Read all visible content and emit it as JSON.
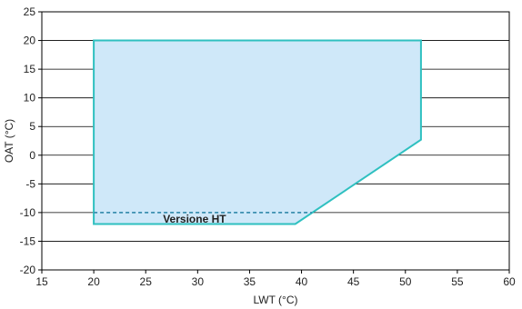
{
  "chart_data": {
    "type": "area",
    "title": "",
    "xlabel": "LWT (°C)",
    "ylabel": "OAT (°C)",
    "xlim": [
      15,
      60
    ],
    "ylim": [
      -20,
      25
    ],
    "xticks": [
      15,
      20,
      25,
      30,
      35,
      40,
      45,
      50,
      55,
      60
    ],
    "yticks": [
      -20,
      -15,
      -10,
      -5,
      0,
      5,
      10,
      15,
      20,
      25
    ],
    "grid": "horizontal",
    "series": [
      {
        "points": [
          {
            "x": 20,
            "y": 20
          },
          {
            "x": 51.5,
            "y": 20
          },
          {
            "x": 51.5,
            "y": 2.7
          },
          {
            "x": 39.4,
            "y": -12
          },
          {
            "x": 20,
            "y": -12
          }
        ]
      }
    ],
    "reference_line": {
      "x": [
        20,
        41
      ],
      "y": -10,
      "label": "Versione HT"
    },
    "colors": {
      "fill": "#cfe8f9",
      "stroke": "#2fc0c0",
      "dashed": "#3b8fb0",
      "grid": "#000000"
    }
  }
}
